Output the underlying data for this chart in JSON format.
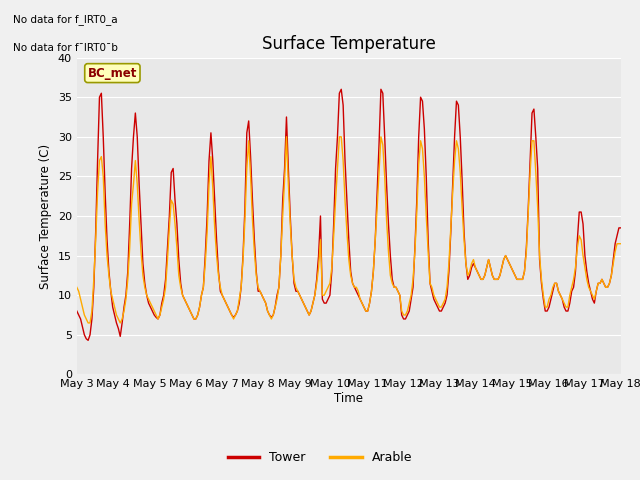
{
  "title": "Surface Temperature",
  "xlabel": "Time",
  "ylabel": "Surface Temperature (C)",
  "ylim": [
    0,
    40
  ],
  "no_data_text": [
    "No data for f_IRT0_a",
    "No data for f¯IRT0¯b"
  ],
  "bc_met_label": "BC_met",
  "legend_entries": [
    "Tower",
    "Arable"
  ],
  "legend_colors": [
    "#cc0000",
    "#ffaa00"
  ],
  "tower_color": "#cc0000",
  "arable_color": "#ffaa00",
  "background_color": "#e8e8e8",
  "fig_facecolor": "#f0f0f0",
  "x_tick_labels": [
    "May 3",
    "May 4",
    "May 5",
    "May 6",
    "May 7",
    "May 8",
    "May 9",
    "May 10",
    "May 11",
    "May 12",
    "May 13",
    "May 14",
    "May 15",
    "May 16",
    "May 17",
    "May 18"
  ],
  "tower_data": [
    8.0,
    7.5,
    7.0,
    6.0,
    5.0,
    4.5,
    4.3,
    5.0,
    7.0,
    11.0,
    18.0,
    27.0,
    35.0,
    35.5,
    30.0,
    23.0,
    17.0,
    13.0,
    10.5,
    8.5,
    7.5,
    6.5,
    5.8,
    4.8,
    6.5,
    8.5,
    10.0,
    13.0,
    19.0,
    26.0,
    30.0,
    33.0,
    30.0,
    24.0,
    19.0,
    14.0,
    11.5,
    10.0,
    9.0,
    8.5,
    8.0,
    7.5,
    7.2,
    7.0,
    7.5,
    9.0,
    10.0,
    12.0,
    16.0,
    20.0,
    25.5,
    26.0,
    22.0,
    19.0,
    14.5,
    11.5,
    10.0,
    9.5,
    9.0,
    8.5,
    8.0,
    7.5,
    7.0,
    7.0,
    7.5,
    8.5,
    10.0,
    11.0,
    15.0,
    20.0,
    27.0,
    30.5,
    27.0,
    22.0,
    17.0,
    13.0,
    10.5,
    10.0,
    9.5,
    9.0,
    8.5,
    8.0,
    7.5,
    7.2,
    7.5,
    8.0,
    9.0,
    11.0,
    15.0,
    21.0,
    30.5,
    32.0,
    27.5,
    22.0,
    17.0,
    13.0,
    10.5,
    10.5,
    10.0,
    9.5,
    9.0,
    8.0,
    7.5,
    7.2,
    7.5,
    8.5,
    10.0,
    11.0,
    15.0,
    22.0,
    26.0,
    32.5,
    26.0,
    20.0,
    15.0,
    11.5,
    10.5,
    10.5,
    10.0,
    9.5,
    9.0,
    8.5,
    8.0,
    7.5,
    8.0,
    9.0,
    10.0,
    12.0,
    15.0,
    20.0,
    9.5,
    9.0,
    9.0,
    9.5,
    10.0,
    13.0,
    19.0,
    26.0,
    30.0,
    35.5,
    36.0,
    34.0,
    27.0,
    22.0,
    17.0,
    13.0,
    11.5,
    11.0,
    10.5,
    10.0,
    9.5,
    9.0,
    8.5,
    8.0,
    8.0,
    9.0,
    10.5,
    13.0,
    17.0,
    23.0,
    29.0,
    36.0,
    35.5,
    30.0,
    24.0,
    19.0,
    15.0,
    12.0,
    11.0,
    11.0,
    10.5,
    10.0,
    7.5,
    7.0,
    7.0,
    7.5,
    8.0,
    9.5,
    11.0,
    16.0,
    22.0,
    30.0,
    35.0,
    34.5,
    31.0,
    25.0,
    17.0,
    11.5,
    10.5,
    9.5,
    9.0,
    8.5,
    8.0,
    8.0,
    8.5,
    9.0,
    10.0,
    13.0,
    18.0,
    24.0,
    30.0,
    34.5,
    34.0,
    30.0,
    24.5,
    18.0,
    14.0,
    12.0,
    12.5,
    13.5,
    14.0,
    13.5,
    13.0,
    12.5,
    12.0,
    12.0,
    12.5,
    13.5,
    14.5,
    13.5,
    12.5,
    12.0,
    12.0,
    12.0,
    12.5,
    13.5,
    14.5,
    15.0,
    14.5,
    14.0,
    13.5,
    13.0,
    12.5,
    12.0,
    12.0,
    12.0,
    12.0,
    13.0,
    16.0,
    21.0,
    27.0,
    33.0,
    33.5,
    30.0,
    26.0,
    14.5,
    11.5,
    9.5,
    8.0,
    8.0,
    8.5,
    9.5,
    10.5,
    11.5,
    11.5,
    10.5,
    10.0,
    9.5,
    8.5,
    8.0,
    8.0,
    9.0,
    10.5,
    11.0,
    13.0,
    17.0,
    20.5,
    20.5,
    19.0,
    15.0,
    13.0,
    11.5,
    10.5,
    9.5,
    9.0,
    10.5,
    11.5,
    11.5,
    12.0,
    11.5,
    11.0,
    11.0,
    11.5,
    12.5,
    14.5,
    16.5,
    17.5,
    18.5,
    18.5
  ],
  "arable_data": [
    11.0,
    10.5,
    9.5,
    8.5,
    7.5,
    7.0,
    6.5,
    6.5,
    8.0,
    12.0,
    17.0,
    23.0,
    27.0,
    27.5,
    25.0,
    19.0,
    15.0,
    12.5,
    10.5,
    9.5,
    8.5,
    7.5,
    7.0,
    6.5,
    7.0,
    8.0,
    9.5,
    12.0,
    16.0,
    21.5,
    24.0,
    27.0,
    24.0,
    19.5,
    15.5,
    12.5,
    11.0,
    10.0,
    9.5,
    9.0,
    8.5,
    8.0,
    7.5,
    7.0,
    7.5,
    8.5,
    9.5,
    11.0,
    14.5,
    18.5,
    22.0,
    21.5,
    19.0,
    16.0,
    12.5,
    11.0,
    10.0,
    9.5,
    9.0,
    8.5,
    8.0,
    7.5,
    7.0,
    7.0,
    7.5,
    8.5,
    10.0,
    11.0,
    14.0,
    18.0,
    24.0,
    27.5,
    23.5,
    18.5,
    15.0,
    12.5,
    11.0,
    10.0,
    9.5,
    9.0,
    8.5,
    8.0,
    7.5,
    7.0,
    7.5,
    8.0,
    9.5,
    11.0,
    14.5,
    19.5,
    26.0,
    29.5,
    25.0,
    19.5,
    15.5,
    12.5,
    11.0,
    10.5,
    10.0,
    9.5,
    9.0,
    8.0,
    7.5,
    7.0,
    7.5,
    8.5,
    9.5,
    11.0,
    15.0,
    20.0,
    24.5,
    30.0,
    24.0,
    19.0,
    15.0,
    12.0,
    11.0,
    10.5,
    10.0,
    9.5,
    9.0,
    8.5,
    8.0,
    7.5,
    8.0,
    9.0,
    10.0,
    11.5,
    13.5,
    17.0,
    10.0,
    10.0,
    10.5,
    11.0,
    11.5,
    13.5,
    17.5,
    22.0,
    26.0,
    30.0,
    30.0,
    27.0,
    22.0,
    18.0,
    14.5,
    12.5,
    11.5,
    11.0,
    11.0,
    10.5,
    9.5,
    9.0,
    8.5,
    8.0,
    8.0,
    9.0,
    10.5,
    13.0,
    17.0,
    21.0,
    25.5,
    30.0,
    29.0,
    25.0,
    19.5,
    15.5,
    12.5,
    11.5,
    11.0,
    11.0,
    10.5,
    10.0,
    8.0,
    7.5,
    7.5,
    8.0,
    9.0,
    10.0,
    12.0,
    15.5,
    20.5,
    26.5,
    29.5,
    28.5,
    25.0,
    20.0,
    15.5,
    11.5,
    11.0,
    10.0,
    9.5,
    9.0,
    8.5,
    8.5,
    9.0,
    9.5,
    11.0,
    14.0,
    18.5,
    23.0,
    27.0,
    29.5,
    28.5,
    25.5,
    21.0,
    17.0,
    14.0,
    12.5,
    13.0,
    14.0,
    14.5,
    13.5,
    13.0,
    12.5,
    12.0,
    12.0,
    12.5,
    13.5,
    14.5,
    13.5,
    12.5,
    12.0,
    12.0,
    12.0,
    12.5,
    13.5,
    14.5,
    15.0,
    14.5,
    14.0,
    13.5,
    13.0,
    12.5,
    12.0,
    12.0,
    12.0,
    12.0,
    13.0,
    15.5,
    20.5,
    25.5,
    29.5,
    29.5,
    25.5,
    21.0,
    15.0,
    12.0,
    10.0,
    8.5,
    8.5,
    9.5,
    10.0,
    11.0,
    11.5,
    11.5,
    10.5,
    10.0,
    9.5,
    9.0,
    8.5,
    8.5,
    10.0,
    11.0,
    12.0,
    13.5,
    16.0,
    17.5,
    17.0,
    15.0,
    13.5,
    12.0,
    11.0,
    10.5,
    10.0,
    9.5,
    10.5,
    11.5,
    11.5,
    12.0,
    11.5,
    11.0,
    11.0,
    11.5,
    12.5,
    14.0,
    15.5,
    16.5,
    16.5,
    16.5
  ]
}
